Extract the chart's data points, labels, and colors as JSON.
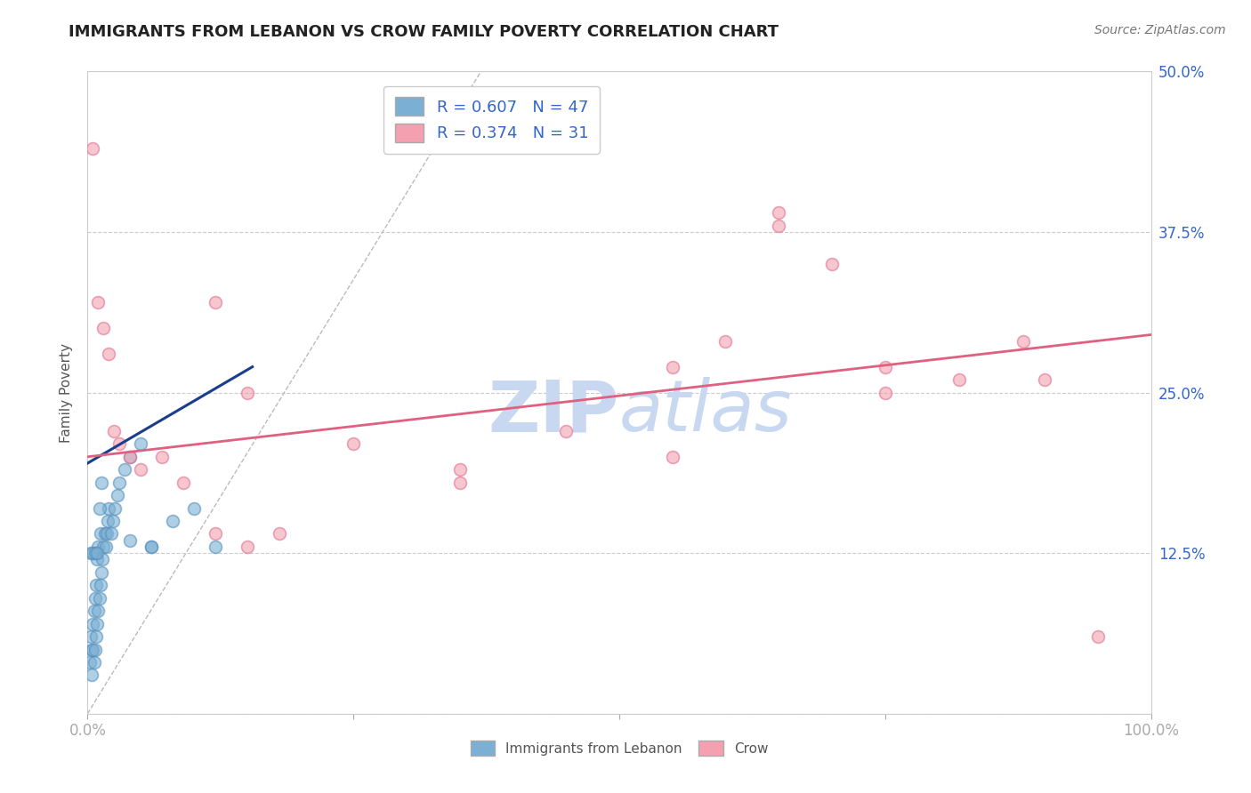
{
  "title": "IMMIGRANTS FROM LEBANON VS CROW FAMILY POVERTY CORRELATION CHART",
  "source_text": "Source: ZipAtlas.com",
  "ylabel": "Family Poverty",
  "legend_label_blue": "Immigrants from Lebanon",
  "legend_label_pink": "Crow",
  "R_blue": 0.607,
  "N_blue": 47,
  "R_pink": 0.374,
  "N_pink": 31,
  "xlim": [
    0.0,
    1.0
  ],
  "ylim": [
    0.0,
    0.5
  ],
  "xticks": [
    0.0,
    0.25,
    0.5,
    0.75,
    1.0
  ],
  "yticks": [
    0.0,
    0.125,
    0.25,
    0.375,
    0.5
  ],
  "grid_color": "#cccccc",
  "blue_color": "#7bafd4",
  "blue_edge_color": "#5590bb",
  "pink_color": "#f4a0b0",
  "pink_edge_color": "#dd7090",
  "trend_blue_color": "#1a3e8c",
  "trend_pink_color": "#e06080",
  "ref_line_color": "#bbbbbb",
  "watermark_color": "#c8d8f0",
  "tick_label_color": "#3366cc",
  "title_color": "#222222",
  "source_color": "#777777",
  "ylabel_color": "#555555",
  "blue_scatter_x": [
    0.002,
    0.003,
    0.004,
    0.004,
    0.005,
    0.005,
    0.006,
    0.006,
    0.007,
    0.007,
    0.008,
    0.008,
    0.009,
    0.009,
    0.01,
    0.01,
    0.011,
    0.012,
    0.012,
    0.013,
    0.014,
    0.015,
    0.016,
    0.017,
    0.018,
    0.019,
    0.02,
    0.022,
    0.024,
    0.026,
    0.028,
    0.03,
    0.035,
    0.04,
    0.05,
    0.06,
    0.08,
    0.1,
    0.12,
    0.04,
    0.003,
    0.005,
    0.007,
    0.009,
    0.011,
    0.013,
    0.06
  ],
  "blue_scatter_y": [
    0.04,
    0.06,
    0.03,
    0.05,
    0.05,
    0.07,
    0.04,
    0.08,
    0.05,
    0.09,
    0.06,
    0.1,
    0.07,
    0.12,
    0.08,
    0.13,
    0.09,
    0.1,
    0.14,
    0.11,
    0.12,
    0.13,
    0.14,
    0.13,
    0.14,
    0.15,
    0.16,
    0.14,
    0.15,
    0.16,
    0.17,
    0.18,
    0.19,
    0.2,
    0.21,
    0.13,
    0.15,
    0.16,
    0.13,
    0.135,
    0.125,
    0.125,
    0.125,
    0.125,
    0.16,
    0.18,
    0.13
  ],
  "pink_scatter_x": [
    0.005,
    0.01,
    0.015,
    0.02,
    0.025,
    0.03,
    0.04,
    0.05,
    0.07,
    0.09,
    0.12,
    0.15,
    0.18,
    0.25,
    0.35,
    0.45,
    0.55,
    0.65,
    0.75,
    0.82,
    0.88,
    0.95,
    0.12,
    0.15,
    0.6,
    0.65,
    0.7,
    0.75,
    0.55,
    0.35,
    0.9
  ],
  "pink_scatter_y": [
    0.44,
    0.32,
    0.3,
    0.28,
    0.22,
    0.21,
    0.2,
    0.19,
    0.2,
    0.18,
    0.14,
    0.13,
    0.14,
    0.21,
    0.19,
    0.22,
    0.27,
    0.38,
    0.27,
    0.26,
    0.29,
    0.06,
    0.32,
    0.25,
    0.29,
    0.39,
    0.35,
    0.25,
    0.2,
    0.18,
    0.26
  ],
  "blue_trend_x0": 0.0,
  "blue_trend_y0": 0.195,
  "blue_trend_x1": 0.155,
  "blue_trend_y1": 0.27,
  "pink_trend_x0": 0.0,
  "pink_trend_y0": 0.2,
  "pink_trend_x1": 1.0,
  "pink_trend_y1": 0.295,
  "ref_line_x0": 0.0,
  "ref_line_y0": 0.0,
  "ref_line_x1": 0.37,
  "ref_line_y1": 0.5,
  "background_color": "#ffffff",
  "title_fontsize": 13,
  "axis_label_fontsize": 11,
  "tick_fontsize": 12,
  "legend_fontsize": 13,
  "source_fontsize": 10,
  "scatter_size": 100,
  "scatter_alpha": 0.6,
  "scatter_linewidth": 1.2
}
